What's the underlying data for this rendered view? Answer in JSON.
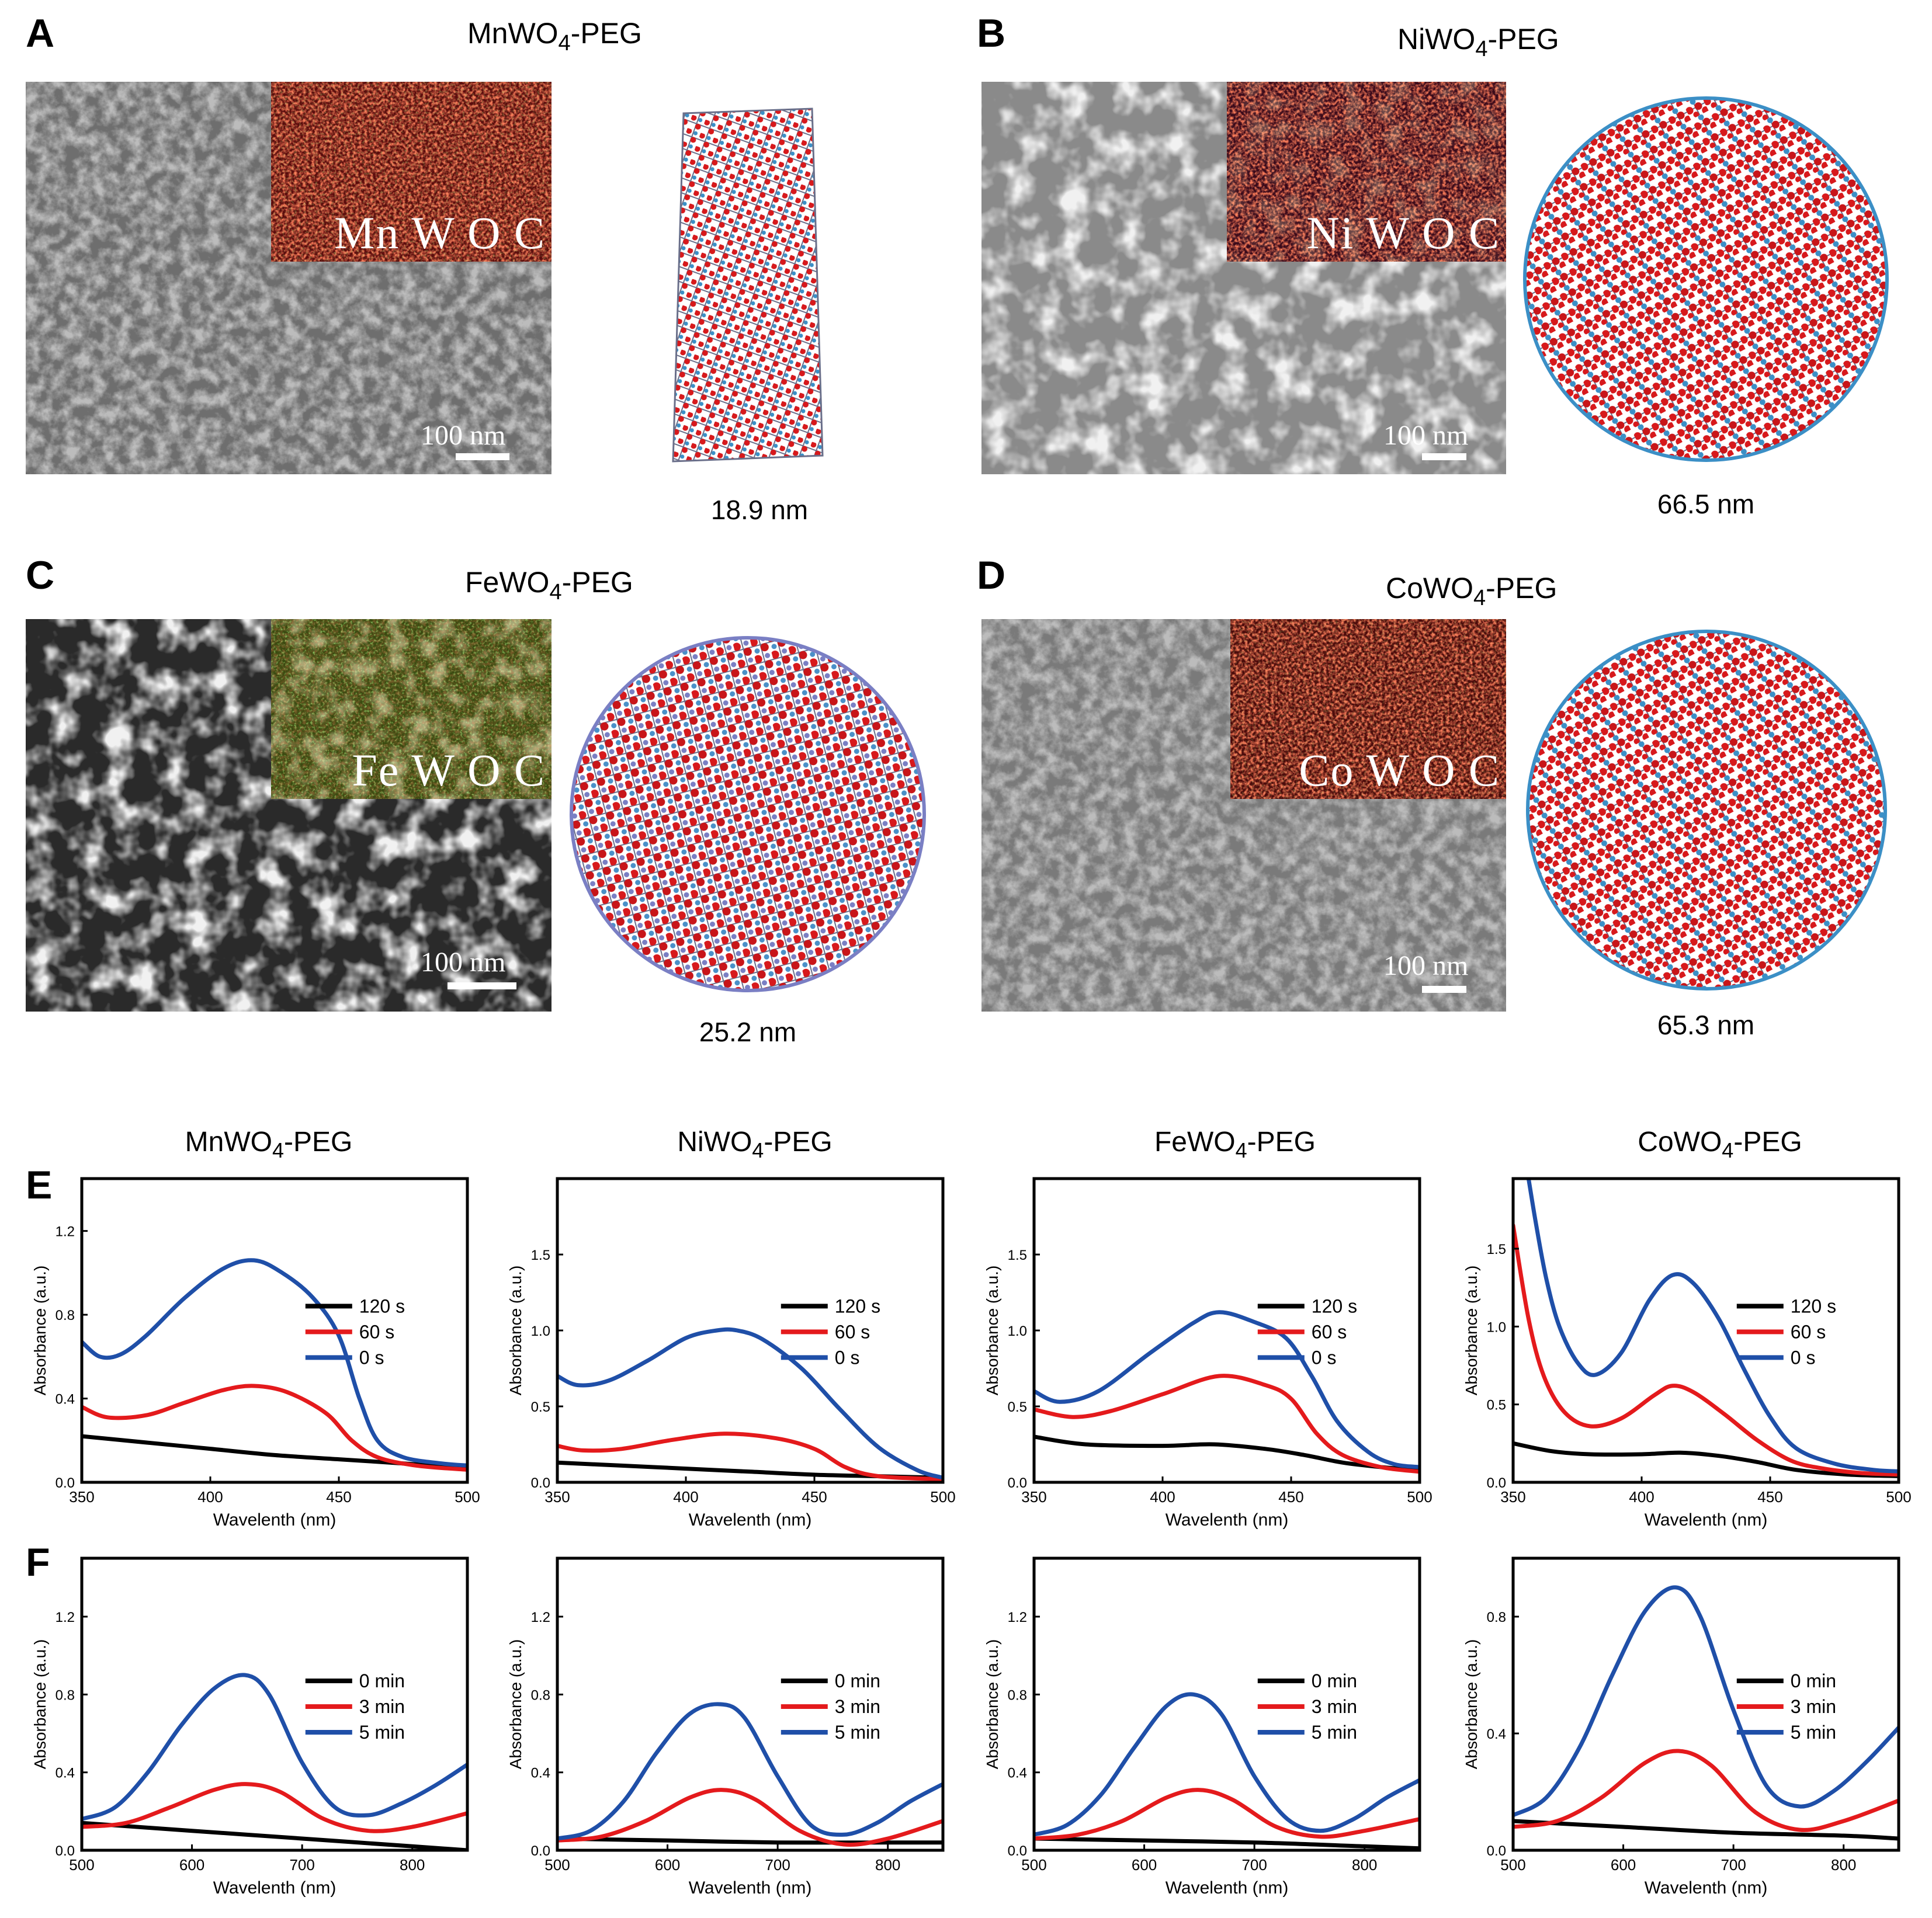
{
  "panels": {
    "A": {
      "label": "A",
      "title_main": "MnWO",
      "title_sub": "4",
      "title_tail": "-PEG",
      "elements": "Mn W O C",
      "scale": "100 nm",
      "size": "18.9 nm"
    },
    "B": {
      "label": "B",
      "title_main": "NiWO",
      "title_sub": "4",
      "title_tail": "-PEG",
      "elements": "Ni W O C",
      "scale": "100 nm",
      "size": "66.5 nm"
    },
    "C": {
      "label": "C",
      "title_main": "FeWO",
      "title_sub": "4",
      "title_tail": "-PEG",
      "elements": "Fe W O C",
      "scale": "100 nm",
      "size": "25.2 nm"
    },
    "D": {
      "label": "D",
      "title_main": "CoWO",
      "title_sub": "4",
      "title_tail": "-PEG",
      "elements": "Co W O C",
      "scale": "100 nm",
      "size": "65.3 nm"
    },
    "E": {
      "label": "E"
    },
    "F": {
      "label": "F"
    }
  },
  "colors": {
    "black": "#000000",
    "red": "#e41a1c",
    "blue": "#1f4fa8"
  },
  "chart_titles": [
    {
      "main": "MnWO",
      "sub": "4",
      "tail": "-PEG"
    },
    {
      "main": "NiWO",
      "sub": "4",
      "tail": "-PEG"
    },
    {
      "main": "FeWO",
      "sub": "4",
      "tail": "-PEG"
    },
    {
      "main": "CoWO",
      "sub": "4",
      "tail": "-PEG"
    }
  ],
  "chart_data": [
    {
      "type": "line",
      "row": "E",
      "material": "MnWO4-PEG",
      "xlabel": "Wavelenth (nm)",
      "ylabel": "Absorbance (a.u.)",
      "xlim": [
        350,
        500
      ],
      "ylim": [
        0,
        1.45
      ],
      "xticks": [
        350,
        400,
        450,
        500
      ],
      "yticks": [
        0.0,
        0.4,
        0.8,
        1.2
      ],
      "ytick_labels": [
        "0.0",
        "0.4",
        "0.8",
        "1.2"
      ],
      "legend": "right",
      "series": [
        {
          "name": "120 s",
          "color": "black",
          "x": [
            350,
            375,
            400,
            425,
            450,
            475,
            500
          ],
          "y": [
            0.22,
            0.19,
            0.16,
            0.13,
            0.11,
            0.09,
            0.07
          ]
        },
        {
          "name": "60 s",
          "color": "red",
          "x": [
            350,
            360,
            375,
            390,
            405,
            417,
            430,
            445,
            455,
            465,
            480,
            500
          ],
          "y": [
            0.36,
            0.31,
            0.32,
            0.38,
            0.44,
            0.46,
            0.43,
            0.33,
            0.2,
            0.12,
            0.08,
            0.06
          ]
        },
        {
          "name": "0 s",
          "color": "blue",
          "x": [
            350,
            357,
            365,
            375,
            390,
            405,
            417,
            428,
            440,
            450,
            458,
            465,
            475,
            490,
            500
          ],
          "y": [
            0.67,
            0.6,
            0.61,
            0.7,
            0.88,
            1.02,
            1.06,
            1.0,
            0.88,
            0.7,
            0.4,
            0.2,
            0.12,
            0.09,
            0.08
          ]
        }
      ]
    },
    {
      "type": "line",
      "row": "E",
      "material": "NiWO4-PEG",
      "xlabel": "Wavelenth (nm)",
      "ylabel": "Absorbance (a.u.)",
      "xlim": [
        350,
        500
      ],
      "ylim": [
        0,
        2.0
      ],
      "xticks": [
        350,
        400,
        450,
        500
      ],
      "yticks": [
        0.0,
        0.5,
        1.0,
        1.5
      ],
      "ytick_labels": [
        "0.0",
        "0.5",
        "1.0",
        "1.5"
      ],
      "legend": "right",
      "series": [
        {
          "name": "120 s",
          "color": "black",
          "x": [
            350,
            375,
            400,
            425,
            450,
            475,
            500
          ],
          "y": [
            0.13,
            0.11,
            0.09,
            0.07,
            0.05,
            0.04,
            0.03
          ]
        },
        {
          "name": "60 s",
          "color": "red",
          "x": [
            350,
            360,
            375,
            395,
            415,
            435,
            450,
            462,
            475,
            500
          ],
          "y": [
            0.24,
            0.21,
            0.22,
            0.28,
            0.32,
            0.29,
            0.22,
            0.1,
            0.04,
            0.02
          ]
        },
        {
          "name": "0 s",
          "color": "blue",
          "x": [
            350,
            358,
            370,
            385,
            400,
            412,
            420,
            430,
            445,
            460,
            475,
            490,
            500
          ],
          "y": [
            0.7,
            0.64,
            0.67,
            0.8,
            0.95,
            1.0,
            1.0,
            0.94,
            0.75,
            0.48,
            0.23,
            0.08,
            0.03
          ]
        }
      ]
    },
    {
      "type": "line",
      "row": "E",
      "material": "FeWO4-PEG",
      "xlabel": "Wavelenth (nm)",
      "ylabel": "Absorbance (a.u.)",
      "xlim": [
        350,
        500
      ],
      "ylim": [
        0,
        2.0
      ],
      "xticks": [
        350,
        400,
        450,
        500
      ],
      "yticks": [
        0.0,
        0.5,
        1.0,
        1.5
      ],
      "ytick_labels": [
        "0.0",
        "0.5",
        "1.0",
        "1.5"
      ],
      "legend": "right",
      "series": [
        {
          "name": "120 s",
          "color": "black",
          "x": [
            350,
            370,
            400,
            420,
            440,
            455,
            470,
            485,
            500
          ],
          "y": [
            0.3,
            0.25,
            0.24,
            0.25,
            0.22,
            0.18,
            0.13,
            0.1,
            0.08
          ]
        },
        {
          "name": "60 s",
          "color": "red",
          "x": [
            350,
            365,
            380,
            400,
            422,
            440,
            450,
            460,
            470,
            485,
            500
          ],
          "y": [
            0.48,
            0.43,
            0.47,
            0.58,
            0.7,
            0.64,
            0.55,
            0.32,
            0.18,
            0.1,
            0.07
          ]
        },
        {
          "name": "0 s",
          "color": "blue",
          "x": [
            350,
            360,
            375,
            395,
            412,
            422,
            435,
            448,
            458,
            468,
            480,
            490,
            500
          ],
          "y": [
            0.6,
            0.53,
            0.6,
            0.85,
            1.05,
            1.12,
            1.06,
            0.95,
            0.7,
            0.4,
            0.2,
            0.12,
            0.1
          ]
        }
      ]
    },
    {
      "type": "line",
      "row": "E",
      "material": "CoWO4-PEG",
      "xlabel": "Wavelenth (nm)",
      "ylabel": "Absorbance (a.u.)",
      "xlim": [
        350,
        500
      ],
      "ylim": [
        0,
        1.95
      ],
      "xticks": [
        350,
        400,
        450,
        500
      ],
      "yticks": [
        0.0,
        0.5,
        1.0,
        1.5
      ],
      "ytick_labels": [
        "0.0",
        "0.5",
        "1.0",
        "1.5"
      ],
      "legend": "right",
      "series": [
        {
          "name": "120 s",
          "color": "black",
          "x": [
            350,
            365,
            380,
            400,
            415,
            430,
            445,
            460,
            480,
            500
          ],
          "y": [
            0.25,
            0.2,
            0.18,
            0.18,
            0.19,
            0.17,
            0.13,
            0.08,
            0.05,
            0.04
          ]
        },
        {
          "name": "60 s",
          "color": "red",
          "x": [
            350,
            356,
            362,
            370,
            380,
            392,
            405,
            412,
            420,
            432,
            445,
            458,
            470,
            485,
            500
          ],
          "y": [
            1.65,
            1.05,
            0.68,
            0.45,
            0.36,
            0.41,
            0.56,
            0.62,
            0.58,
            0.44,
            0.27,
            0.14,
            0.09,
            0.06,
            0.05
          ]
        },
        {
          "name": "0 s",
          "color": "blue",
          "x": [
            356,
            359,
            363,
            368,
            375,
            382,
            392,
            403,
            412,
            420,
            430,
            440,
            450,
            460,
            475,
            490,
            500
          ],
          "y": [
            1.95,
            1.65,
            1.3,
            1.0,
            0.77,
            0.69,
            0.83,
            1.17,
            1.33,
            1.28,
            1.05,
            0.72,
            0.42,
            0.22,
            0.12,
            0.08,
            0.07
          ]
        }
      ]
    },
    {
      "type": "line",
      "row": "F",
      "material": "MnWO4-PEG",
      "xlabel": "Wavelenth (nm)",
      "ylabel": "Absorbance (a.u.)",
      "xlim": [
        500,
        850
      ],
      "ylim": [
        0,
        1.5
      ],
      "xticks": [
        500,
        600,
        700,
        800
      ],
      "yticks": [
        0.0,
        0.4,
        0.8,
        1.2
      ],
      "ytick_labels": [
        "0.0",
        "0.4",
        "0.8",
        "1.2"
      ],
      "legend": "right",
      "series": [
        {
          "name": "0 min",
          "color": "black",
          "x": [
            500,
            600,
            700,
            800,
            850
          ],
          "y": [
            0.14,
            0.1,
            0.06,
            0.02,
            0.0
          ]
        },
        {
          "name": "3 min",
          "color": "red",
          "x": [
            500,
            540,
            580,
            620,
            650,
            680,
            720,
            760,
            800,
            850
          ],
          "y": [
            0.12,
            0.14,
            0.22,
            0.31,
            0.34,
            0.3,
            0.16,
            0.1,
            0.12,
            0.19
          ]
        },
        {
          "name": "5 min",
          "color": "blue",
          "x": [
            500,
            530,
            560,
            590,
            620,
            648,
            670,
            700,
            730,
            760,
            790,
            820,
            850
          ],
          "y": [
            0.16,
            0.22,
            0.4,
            0.64,
            0.83,
            0.9,
            0.8,
            0.45,
            0.22,
            0.18,
            0.24,
            0.33,
            0.44
          ]
        }
      ]
    },
    {
      "type": "line",
      "row": "F",
      "material": "NiWO4-PEG",
      "xlabel": "Wavelenth (nm)",
      "ylabel": "Absorbance (a.u.)",
      "xlim": [
        500,
        850
      ],
      "ylim": [
        0,
        1.5
      ],
      "xticks": [
        500,
        600,
        700,
        800
      ],
      "yticks": [
        0.0,
        0.4,
        0.8,
        1.2
      ],
      "ytick_labels": [
        "0.0",
        "0.4",
        "0.8",
        "1.2"
      ],
      "legend": "right",
      "series": [
        {
          "name": "0 min",
          "color": "black",
          "x": [
            500,
            600,
            700,
            800,
            850
          ],
          "y": [
            0.06,
            0.05,
            0.04,
            0.04,
            0.04
          ]
        },
        {
          "name": "3 min",
          "color": "red",
          "x": [
            500,
            540,
            580,
            620,
            650,
            680,
            720,
            760,
            800,
            850
          ],
          "y": [
            0.05,
            0.07,
            0.15,
            0.27,
            0.31,
            0.26,
            0.1,
            0.03,
            0.06,
            0.15
          ]
        },
        {
          "name": "5 min",
          "color": "blue",
          "x": [
            500,
            530,
            560,
            590,
            620,
            648,
            670,
            700,
            730,
            760,
            790,
            820,
            850
          ],
          "y": [
            0.06,
            0.1,
            0.25,
            0.5,
            0.7,
            0.75,
            0.68,
            0.38,
            0.13,
            0.08,
            0.14,
            0.25,
            0.34
          ]
        }
      ]
    },
    {
      "type": "line",
      "row": "F",
      "material": "FeWO4-PEG",
      "xlabel": "Wavelenth (nm)",
      "ylabel": "Absorbance (a.u.)",
      "xlim": [
        500,
        850
      ],
      "ylim": [
        0,
        1.5
      ],
      "xticks": [
        500,
        600,
        700,
        800
      ],
      "yticks": [
        0.0,
        0.4,
        0.8,
        1.2
      ],
      "ytick_labels": [
        "0.0",
        "0.4",
        "0.8",
        "1.2"
      ],
      "legend": "right",
      "series": [
        {
          "name": "0 min",
          "color": "black",
          "x": [
            500,
            600,
            700,
            800,
            850
          ],
          "y": [
            0.06,
            0.05,
            0.04,
            0.02,
            0.01
          ]
        },
        {
          "name": "3 min",
          "color": "red",
          "x": [
            500,
            540,
            580,
            620,
            650,
            680,
            720,
            760,
            800,
            850
          ],
          "y": [
            0.06,
            0.08,
            0.15,
            0.27,
            0.31,
            0.26,
            0.12,
            0.07,
            0.1,
            0.16
          ]
        },
        {
          "name": "5 min",
          "color": "blue",
          "x": [
            500,
            530,
            560,
            590,
            620,
            645,
            670,
            700,
            730,
            760,
            790,
            820,
            850
          ],
          "y": [
            0.08,
            0.13,
            0.28,
            0.52,
            0.74,
            0.8,
            0.7,
            0.38,
            0.16,
            0.1,
            0.16,
            0.27,
            0.36
          ]
        }
      ]
    },
    {
      "type": "line",
      "row": "F",
      "material": "CoWO4-PEG",
      "xlabel": "Wavelenth (nm)",
      "ylabel": "Absorbance (a.u.)",
      "xlim": [
        500,
        850
      ],
      "ylim": [
        0,
        1.0
      ],
      "xticks": [
        500,
        600,
        700,
        800
      ],
      "yticks": [
        0.0,
        0.4,
        0.8
      ],
      "ytick_labels": [
        "0.0",
        "0.4",
        "0.8"
      ],
      "legend": "right",
      "series": [
        {
          "name": "0 min",
          "color": "black",
          "x": [
            500,
            600,
            700,
            800,
            850
          ],
          "y": [
            0.1,
            0.08,
            0.06,
            0.05,
            0.04
          ]
        },
        {
          "name": "3 min",
          "color": "red",
          "x": [
            500,
            540,
            580,
            620,
            650,
            680,
            720,
            760,
            800,
            850
          ],
          "y": [
            0.08,
            0.1,
            0.18,
            0.3,
            0.34,
            0.29,
            0.13,
            0.07,
            0.1,
            0.17
          ]
        },
        {
          "name": "5 min",
          "color": "blue",
          "x": [
            500,
            530,
            560,
            590,
            620,
            648,
            670,
            700,
            730,
            760,
            790,
            820,
            850
          ],
          "y": [
            0.12,
            0.18,
            0.35,
            0.6,
            0.82,
            0.9,
            0.8,
            0.48,
            0.22,
            0.15,
            0.2,
            0.3,
            0.42
          ]
        }
      ]
    }
  ]
}
